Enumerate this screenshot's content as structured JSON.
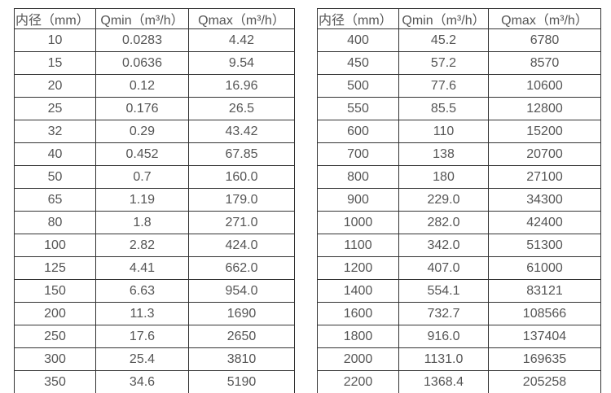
{
  "colors": {
    "background": "#ffffff",
    "border": "#333333",
    "text": "#555555"
  },
  "tables": [
    {
      "headers": [
        "内径（mm）",
        "Qmin（m³/h）",
        "Qmax（m³/h）"
      ],
      "rows": [
        [
          "10",
          "0.0283",
          "4.42"
        ],
        [
          "15",
          "0.0636",
          "9.54"
        ],
        [
          "20",
          "0.12",
          "16.96"
        ],
        [
          "25",
          "0.176",
          "26.5"
        ],
        [
          "32",
          "0.29",
          "43.42"
        ],
        [
          "40",
          "0.452",
          "67.85"
        ],
        [
          "50",
          "0.7",
          "160.0"
        ],
        [
          "65",
          "1.19",
          "179.0"
        ],
        [
          "80",
          "1.8",
          "271.0"
        ],
        [
          "100",
          "2.82",
          "424.0"
        ],
        [
          "125",
          "4.41",
          "662.0"
        ],
        [
          "150",
          "6.63",
          "954.0"
        ],
        [
          "200",
          "11.3",
          "1690"
        ],
        [
          "250",
          "17.6",
          "2650"
        ],
        [
          "300",
          "25.4",
          "3810"
        ],
        [
          "350",
          "34.6",
          "5190"
        ]
      ]
    },
    {
      "headers": [
        "内径（mm）",
        "Qmin（m³/h）",
        "Qmax（m³/h）"
      ],
      "rows": [
        [
          "400",
          "45.2",
          "6780"
        ],
        [
          "450",
          "57.2",
          "8570"
        ],
        [
          "500",
          "77.6",
          "10600"
        ],
        [
          "550",
          "85.5",
          "12800"
        ],
        [
          "600",
          "110",
          "15200"
        ],
        [
          "700",
          "138",
          "20700"
        ],
        [
          "800",
          "180",
          "27100"
        ],
        [
          "900",
          "229.0",
          "34300"
        ],
        [
          "1000",
          "282.0",
          "42400"
        ],
        [
          "1100",
          "342.0",
          "51300"
        ],
        [
          "1200",
          "407.0",
          "61000"
        ],
        [
          "1400",
          "554.1",
          "83121"
        ],
        [
          "1600",
          "732.7",
          "108566"
        ],
        [
          "1800",
          "916.0",
          "137404"
        ],
        [
          "2000",
          "1131.0",
          "169635"
        ],
        [
          "2200",
          "1368.4",
          "205258"
        ]
      ]
    }
  ]
}
